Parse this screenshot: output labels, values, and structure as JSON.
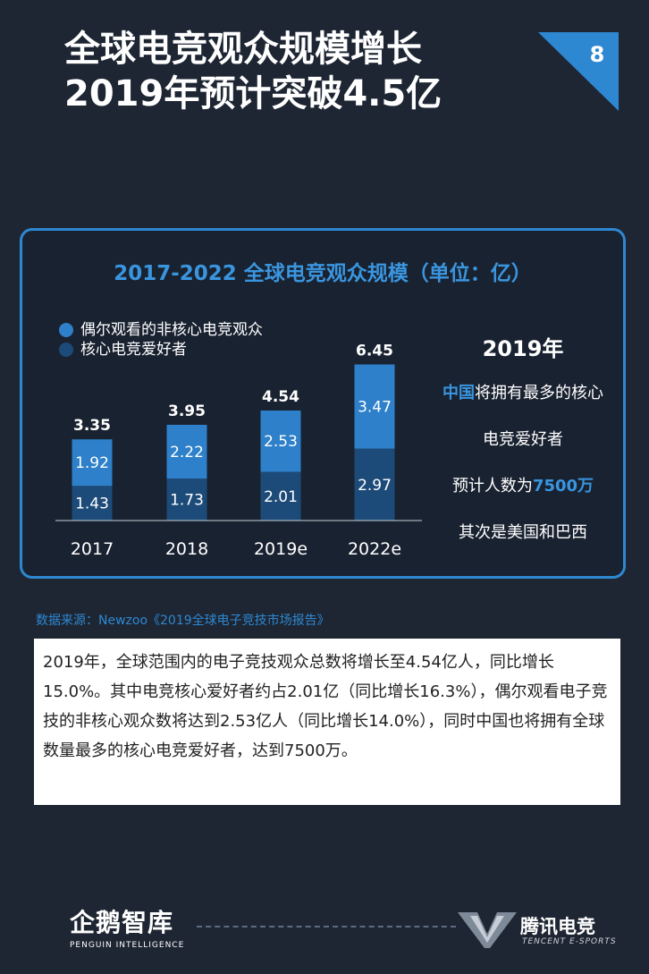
{
  "header": {
    "title_line1": "全球电竞观众规模增长",
    "title_line2": "2019年预计突破4.5亿",
    "page_number": "8"
  },
  "chart_data": {
    "type": "bar",
    "stacked": true,
    "title": "2017-2022 全球电竞观众规模（单位：亿）",
    "categories": [
      "2017",
      "2018",
      "2019e",
      "2022e"
    ],
    "series": [
      {
        "name": "核心电竞爱好者",
        "values": [
          1.43,
          1.73,
          2.01,
          2.97
        ],
        "color": "#1d4b79"
      },
      {
        "name": "偶尔观看的非核心电竞观众",
        "values": [
          1.92,
          2.22,
          2.53,
          3.47
        ],
        "color": "#2d80c9"
      }
    ],
    "totals": [
      "3.35",
      "3.95",
      "4.54",
      "6.45"
    ],
    "legend_top": "偶尔观看的非核心电竞观众",
    "legend_bottom": "核心电竞爱好者",
    "ylim": [
      0,
      7
    ],
    "grid": false
  },
  "side_note": {
    "year": "2019年",
    "line1_highlight": "中国",
    "line1_rest": "将拥有最多的核心",
    "line2": "电竞爱好者",
    "line3_prefix": "预计人数为",
    "line3_highlight": "7500万",
    "line4": "其次是美国和巴西"
  },
  "source": "数据来源：Newzoo《2019全球电子竞技市场报告》",
  "description": "2019年，全球范围内的电子竞技观众总数将增长至4.54亿人，同比增长15.0%。其中电竞核心爱好者约占2.01亿（同比增长16.3%），偶尔观看电子竞技的非核心观众数将达到2.53亿人（同比增长14.0%），同时中国也将拥有全球数量最多的核心电竞爱好者，达到7500万。",
  "footer": {
    "left_logo": "企鹅智库",
    "left_sub": "PENGUIN INTELLIGENCE",
    "right_brand": "腾讯电竞",
    "right_sub": "TENCENT E-SPORTS"
  },
  "colors": {
    "background": "#1e2633",
    "accent": "#2e88d1",
    "bar_core": "#1d4b79",
    "bar_casual": "#2d80c9"
  }
}
